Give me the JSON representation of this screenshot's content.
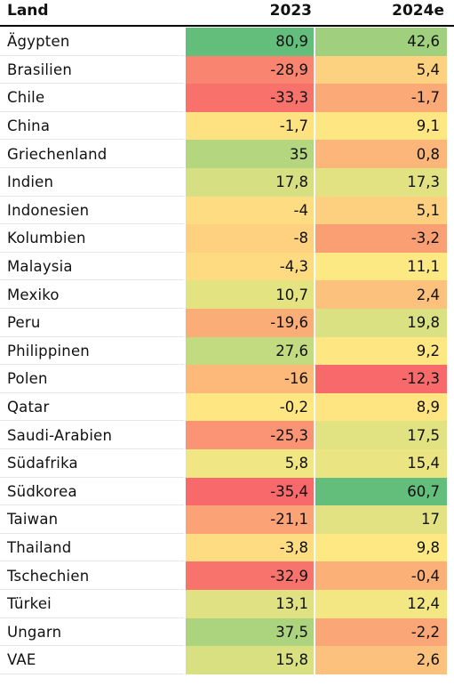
{
  "header": {
    "land": "Land",
    "col_2023": "2023",
    "col_2024e": "2024e"
  },
  "rows": [
    {
      "land": "Ägypten",
      "v2023": "80,9",
      "v2024e": "42,6",
      "bg2023": "#63be7b",
      "bg2024e": "#a0d07e"
    },
    {
      "land": "Brasilien",
      "v2023": "-28,9",
      "v2024e": "5,4",
      "bg2023": "#f98570",
      "bg2024e": "#fcd17f"
    },
    {
      "land": "Chile",
      "v2023": "-33,3",
      "v2024e": "-1,7",
      "bg2023": "#f8716b",
      "bg2024e": "#fba977"
    },
    {
      "land": "China",
      "v2023": "-1,7",
      "v2024e": "9,1",
      "bg2023": "#fee282",
      "bg2024e": "#fee683"
    },
    {
      "land": "Griechenland",
      "v2023": "35",
      "v2024e": "0,8",
      "bg2023": "#b3d67f",
      "bg2024e": "#fcb67a"
    },
    {
      "land": "Indien",
      "v2023": "17,8",
      "v2024e": "17,3",
      "bg2023": "#d6e082",
      "bg2024e": "#e3e282"
    },
    {
      "land": "Indonesien",
      "v2023": "-4",
      "v2024e": "5,1",
      "bg2023": "#fedc81",
      "bg2024e": "#fcd07f"
    },
    {
      "land": "Kolumbien",
      "v2023": "-8",
      "v2024e": "-3,2",
      "bg2023": "#fdd17f",
      "bg2024e": "#fa9e74"
    },
    {
      "land": "Malaysia",
      "v2023": "-4,3",
      "v2024e": "11,1",
      "bg2023": "#fedb81",
      "bg2024e": "#fde983"
    },
    {
      "land": "Mexiko",
      "v2023": "10,7",
      "v2024e": "2,4",
      "bg2023": "#e4e382",
      "bg2024e": "#fcc17c"
    },
    {
      "land": "Peru",
      "v2023": "-19,6",
      "v2024e": "19,8",
      "bg2023": "#fbad78",
      "bg2024e": "#dae183"
    },
    {
      "land": "Philippinen",
      "v2023": "27,6",
      "v2024e": "9,2",
      "bg2023": "#c2da80",
      "bg2024e": "#fee683"
    },
    {
      "land": "Polen",
      "v2023": "-16",
      "v2024e": "-12,3",
      "bg2023": "#fcb97a",
      "bg2024e": "#f8696b"
    },
    {
      "land": "Qatar",
      "v2023": "-0,2",
      "v2024e": "8,9",
      "bg2023": "#fee683",
      "bg2024e": "#fee582"
    },
    {
      "land": "Saudi-Arabien",
      "v2023": "-25,3",
      "v2024e": "17,5",
      "bg2023": "#fa9474",
      "bg2024e": "#e1e282"
    },
    {
      "land": "Südafrika",
      "v2023": "5,8",
      "v2024e": "15,4",
      "bg2023": "#f0e683",
      "bg2024e": "#eae483"
    },
    {
      "land": "Südkorea",
      "v2023": "-35,4",
      "v2024e": "60,7",
      "bg2023": "#f8696b",
      "bg2024e": "#63be7b"
    },
    {
      "land": "Taiwan",
      "v2023": "-21,1",
      "v2024e": "17",
      "bg2023": "#fba376",
      "bg2024e": "#e3e282"
    },
    {
      "land": "Thailand",
      "v2023": "-3,8",
      "v2024e": "9,8",
      "bg2023": "#fedc81",
      "bg2024e": "#fee883"
    },
    {
      "land": "Tschechien",
      "v2023": "-32,9",
      "v2024e": "-0,4",
      "bg2023": "#f8736c",
      "bg2024e": "#fbb078"
    },
    {
      "land": "Türkei",
      "v2023": "13,1",
      "v2024e": "12,4",
      "bg2023": "#dfe182",
      "bg2024e": "#f2e783"
    },
    {
      "land": "Ungarn",
      "v2023": "37,5",
      "v2024e": "-2,2",
      "bg2023": "#acd47f",
      "bg2024e": "#fba676"
    },
    {
      "land": "VAE",
      "v2023": "15,8",
      "v2024e": "2,6",
      "bg2023": "#d9e082",
      "bg2024e": "#fcc17c"
    }
  ]
}
